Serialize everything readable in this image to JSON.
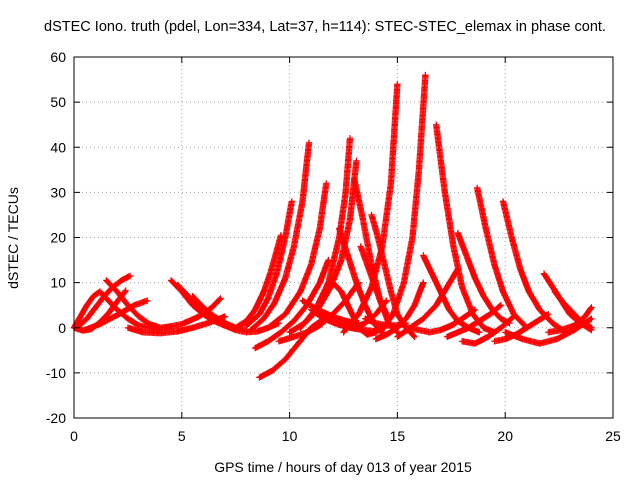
{
  "chart_data": {
    "type": "scatter",
    "title": "dSTEC Iono. truth (pdel, Lon=334, Lat=37, h=114): STEC-STEC_elemax in phase cont.",
    "xlabel": "GPS time / hours of day 013 of year 2015",
    "ylabel": "dSTEC  / TECUs",
    "xlim": [
      0,
      25
    ],
    "ylim": [
      -20,
      60
    ],
    "xticks": [
      0,
      5,
      10,
      15,
      20,
      25
    ],
    "yticks": [
      -20,
      -10,
      0,
      10,
      20,
      30,
      40,
      50,
      60
    ],
    "grid": true,
    "marker": "+",
    "color": "#ff0000",
    "series": [
      {
        "x": [
          0.0,
          0.4,
          0.8,
          1.2,
          1.6,
          2.0,
          2.4
        ],
        "y": [
          0.0,
          -0.6,
          -0.3,
          1.2,
          3.2,
          5.8,
          8.2
        ]
      },
      {
        "x": [
          0.2,
          0.6,
          1.0,
          1.4,
          1.8,
          2.2,
          2.6
        ],
        "y": [
          0.3,
          2.0,
          4.5,
          7.0,
          9.0,
          10.5,
          11.5
        ]
      },
      {
        "x": [
          0.0,
          0.3,
          0.6,
          0.9,
          1.2,
          1.6,
          2.0,
          2.5,
          3.0,
          3.5,
          4.0
        ],
        "y": [
          0.0,
          2.5,
          5.0,
          7.0,
          8.0,
          6.0,
          4.0,
          2.0,
          0.5,
          0.0,
          -0.5
        ]
      },
      {
        "x": [
          1.5,
          2.0,
          2.5,
          3.0,
          3.5,
          4.0,
          4.5
        ],
        "y": [
          10.5,
          8.0,
          5.0,
          2.5,
          0.8,
          0.0,
          0.3
        ]
      },
      {
        "x": [
          0.5,
          1.2,
          2.0,
          2.8,
          3.4
        ],
        "y": [
          -0.5,
          0.8,
          2.8,
          5.0,
          6.0
        ]
      },
      {
        "x": [
          2.5,
          3.2,
          4.0,
          4.8,
          5.5,
          6.2,
          7.0
        ],
        "y": [
          0.0,
          -1.0,
          -1.2,
          -0.8,
          0.0,
          1.0,
          2.5
        ]
      },
      {
        "x": [
          4.5,
          5.0,
          5.5,
          6.0,
          6.5,
          7.0
        ],
        "y": [
          10.5,
          8.0,
          5.0,
          3.0,
          1.5,
          0.5
        ]
      },
      {
        "x": [
          4.8,
          5.3,
          5.8,
          6.3,
          6.8,
          7.3
        ],
        "y": [
          9.5,
          7.0,
          4.5,
          2.5,
          1.0,
          0.0
        ]
      },
      {
        "x": [
          5.5,
          6.0,
          6.5,
          7.0,
          7.5,
          8.0
        ],
        "y": [
          7.0,
          4.5,
          2.5,
          1.0,
          0.0,
          -0.5
        ]
      },
      {
        "x": [
          4.2,
          5.0,
          5.8,
          6.4,
          6.8
        ],
        "y": [
          0.0,
          0.8,
          2.5,
          4.5,
          6.5
        ]
      },
      {
        "x": [
          7.0,
          7.5,
          8.0,
          8.5,
          9.0,
          9.5
        ],
        "y": [
          0.5,
          -0.5,
          -1.0,
          -0.8,
          0.0,
          1.0
        ]
      },
      {
        "x": [
          7.5,
          8.0,
          8.4,
          8.8,
          9.1,
          9.4,
          9.6
        ],
        "y": [
          0.0,
          1.5,
          4.0,
          8.0,
          12.0,
          17.0,
          20.5
        ]
      },
      {
        "x": [
          8.0,
          8.6,
          9.0,
          9.4,
          9.8,
          10.1
        ],
        "y": [
          0.5,
          3.0,
          6.5,
          12.0,
          20.0,
          28.0
        ]
      },
      {
        "x": [
          8.2,
          8.8,
          9.3,
          9.8,
          10.2,
          10.6,
          10.9
        ],
        "y": [
          -0.5,
          2.0,
          5.5,
          11.0,
          18.0,
          28.0,
          41.0
        ]
      },
      {
        "x": [
          8.6,
          9.2,
          9.8,
          10.4,
          11.0,
          11.6
        ],
        "y": [
          -11.0,
          -9.5,
          -7.0,
          -3.5,
          0.0,
          2.0
        ]
      },
      {
        "x": [
          8.4,
          9.0,
          9.6,
          10.2,
          10.8,
          11.4,
          11.8
        ],
        "y": [
          -4.5,
          -3.0,
          -1.0,
          1.5,
          5.0,
          10.0,
          15.0
        ]
      },
      {
        "x": [
          9.0,
          9.8,
          10.5,
          11.0,
          11.4,
          11.7
        ],
        "y": [
          0.0,
          3.0,
          8.0,
          14.0,
          22.0,
          32.0
        ]
      },
      {
        "x": [
          9.5,
          10.2,
          10.8,
          11.4,
          12.0,
          12.6,
          13.2
        ],
        "y": [
          -3.0,
          -2.0,
          -1.0,
          0.5,
          3.0,
          6.0,
          10.0
        ]
      },
      {
        "x": [
          10.0,
          10.7,
          11.3,
          11.9,
          12.4,
          12.8,
          13.1
        ],
        "y": [
          -1.0,
          1.0,
          4.0,
          9.0,
          15.0,
          24.0,
          37.0
        ]
      },
      {
        "x": [
          10.5,
          11.2,
          11.8,
          12.3,
          12.6,
          12.8
        ],
        "y": [
          0.0,
          4.0,
          10.0,
          20.0,
          30.0,
          42.0
        ]
      },
      {
        "x": [
          10.6,
          11.3,
          12.0,
          12.6,
          13.2
        ],
        "y": [
          6.0,
          4.0,
          2.5,
          1.5,
          1.0
        ]
      },
      {
        "x": [
          11.0,
          11.6,
          12.2,
          12.8,
          13.4,
          14.0
        ],
        "y": [
          4.0,
          2.0,
          0.8,
          0.0,
          -0.5,
          -0.8
        ]
      },
      {
        "x": [
          11.5,
          12.0,
          12.5,
          13.0,
          13.5,
          14.0,
          14.5
        ],
        "y": [
          3.0,
          1.5,
          0.5,
          0.0,
          1.0,
          3.0,
          6.0
        ]
      },
      {
        "x": [
          12.0,
          12.4,
          12.8,
          13.2,
          13.6,
          14.0,
          14.4
        ],
        "y": [
          10.0,
          8.0,
          4.0,
          0.0,
          -1.5,
          -1.0,
          0.5
        ]
      },
      {
        "x": [
          12.3,
          12.7,
          13.1,
          13.5,
          13.9,
          14.3
        ],
        "y": [
          22.0,
          16.0,
          10.0,
          5.0,
          1.0,
          -1.0
        ]
      },
      {
        "x": [
          13.0,
          13.4,
          13.8,
          14.2,
          14.6,
          15.0
        ],
        "y": [
          33.0,
          24.0,
          14.0,
          6.0,
          1.0,
          -1.0
        ]
      },
      {
        "x": [
          13.3,
          13.6,
          13.9,
          14.2,
          14.5
        ],
        "y": [
          18.0,
          14.0,
          10.0,
          6.0,
          3.0
        ]
      },
      {
        "x": [
          13.8,
          14.1,
          14.4,
          14.7,
          15.0,
          15.4,
          15.8
        ],
        "y": [
          25.0,
          20.0,
          14.0,
          8.0,
          3.0,
          0.0,
          -2.0
        ]
      },
      {
        "x": [
          12.5,
          13.2,
          13.8,
          14.3,
          14.7,
          15.0
        ],
        "y": [
          -1.0,
          3.0,
          9.0,
          18.0,
          32.0,
          54.0
        ]
      },
      {
        "x": [
          13.5,
          14.0,
          14.5,
          15.0,
          15.4
        ],
        "y": [
          2.0,
          1.0,
          0.5,
          0.5,
          1.0
        ]
      },
      {
        "x": [
          14.0,
          14.5,
          15.0,
          15.4,
          15.8,
          16.2
        ],
        "y": [
          -2.5,
          -1.5,
          0.0,
          2.0,
          5.0,
          10.0
        ]
      },
      {
        "x": [
          14.2,
          14.8,
          15.3,
          15.7,
          16.0,
          16.3
        ],
        "y": [
          -1.0,
          3.0,
          10.0,
          20.0,
          35.0,
          56.0
        ]
      },
      {
        "x": [
          15.0,
          15.6,
          16.2,
          16.8,
          17.3,
          17.8
        ],
        "y": [
          -2.0,
          0.0,
          2.0,
          5.0,
          9.0,
          13.0
        ]
      },
      {
        "x": [
          15.5,
          16.0,
          16.5,
          17.0,
          17.5,
          18.0,
          18.6
        ],
        "y": [
          0.0,
          -0.5,
          -1.0,
          -0.5,
          0.5,
          2.0,
          4.0
        ]
      },
      {
        "x": [
          16.2,
          16.6,
          17.0,
          17.4,
          17.8,
          18.3,
          18.8
        ],
        "y": [
          16.0,
          12.0,
          8.0,
          4.0,
          1.5,
          0.0,
          -1.0
        ]
      },
      {
        "x": [
          16.8,
          17.2,
          17.6,
          18.0,
          18.5,
          19.0,
          19.5
        ],
        "y": [
          45.0,
          30.0,
          18.0,
          9.0,
          3.0,
          0.0,
          -1.0
        ]
      },
      {
        "x": [
          17.3,
          17.8,
          18.3,
          18.8,
          19.3,
          19.8
        ],
        "y": [
          -2.0,
          -1.0,
          0.0,
          1.5,
          3.0,
          5.0
        ]
      },
      {
        "x": [
          17.8,
          18.2,
          18.6,
          19.0,
          19.4,
          19.8,
          20.2
        ],
        "y": [
          21.0,
          16.0,
          11.0,
          7.0,
          4.0,
          2.0,
          1.0
        ]
      },
      {
        "x": [
          18.0,
          18.6,
          19.2,
          19.8,
          20.4
        ],
        "y": [
          -3.0,
          -3.5,
          -2.0,
          0.0,
          2.5
        ]
      },
      {
        "x": [
          18.7,
          19.1,
          19.5,
          19.9,
          20.4,
          21.0
        ],
        "y": [
          31.0,
          22.0,
          14.0,
          8.0,
          3.0,
          0.0
        ]
      },
      {
        "x": [
          19.9,
          20.3,
          20.7,
          21.1,
          21.6,
          22.2,
          22.8
        ],
        "y": [
          28.0,
          20.0,
          13.0,
          8.0,
          4.0,
          1.0,
          -1.0
        ]
      },
      {
        "x": [
          19.5,
          20.0,
          20.5,
          21.0,
          21.5,
          22.0
        ],
        "y": [
          -3.0,
          -2.5,
          -1.5,
          0.0,
          1.5,
          3.0
        ]
      },
      {
        "x": [
          20.0,
          20.8,
          21.6,
          22.4,
          23.2,
          24.0
        ],
        "y": [
          -1.0,
          -2.5,
          -3.5,
          -2.5,
          -0.5,
          2.0
        ]
      },
      {
        "x": [
          21.8,
          22.2,
          22.6,
          23.0,
          23.5,
          24.0
        ],
        "y": [
          12.0,
          9.0,
          6.0,
          3.0,
          1.0,
          -0.5
        ]
      },
      {
        "x": [
          22.3,
          22.7,
          23.1,
          23.5,
          24.0
        ],
        "y": [
          8.0,
          5.5,
          3.5,
          1.5,
          0.0
        ]
      },
      {
        "x": [
          22.0,
          22.6,
          23.2,
          23.7,
          24.0
        ],
        "y": [
          -1.0,
          -0.5,
          0.5,
          2.5,
          4.5
        ]
      }
    ]
  }
}
